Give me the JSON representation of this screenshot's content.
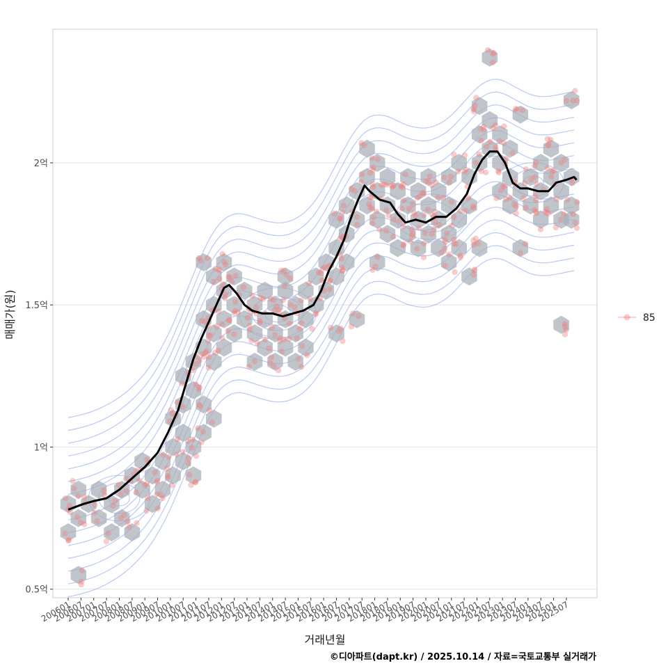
{
  "chart_data": {
    "type": "scatter",
    "title": "",
    "xlabel": "거래년월",
    "ylabel": "매매가(원)",
    "caption": "©디아파트(dapt.kr) / 2025.10.14 / 자료=국토교통부 실거래가",
    "legend": {
      "position": "right",
      "entries": [
        "85"
      ],
      "color": "#f08080"
    },
    "ylim": [
      0.47,
      2.47
    ],
    "y_unit": "억",
    "y_ticks": [
      {
        "value": 0.5,
        "label": "0.5억"
      },
      {
        "value": 1.0,
        "label": "1억"
      },
      {
        "value": 1.5,
        "label": "1.5억"
      },
      {
        "value": 2.0,
        "label": "2억"
      }
    ],
    "x_range_years": [
      2005.4,
      2026.7
    ],
    "x_ticks": [
      "200601",
      "200607",
      "200701",
      "200707",
      "200801",
      "200807",
      "200901",
      "200907",
      "201001",
      "201007",
      "201101",
      "201107",
      "201201",
      "201207",
      "201301",
      "201307",
      "201401",
      "201407",
      "201501",
      "201507",
      "201601",
      "201607",
      "201701",
      "201707",
      "201801",
      "201807",
      "201901",
      "201907",
      "202001",
      "202007",
      "202101",
      "202107",
      "202201",
      "202207",
      "202301",
      "202307",
      "202401",
      "202407",
      "202501",
      "202507"
    ],
    "colors": {
      "point": "#f08080",
      "hex": "#a9b1b9",
      "contour": "#8aa3ee",
      "trend": "#000000",
      "grid": "#e3e3e3",
      "border": "#cccccc"
    },
    "trend_line": [
      [
        2006.0,
        0.78
      ],
      [
        2006.3,
        0.79
      ],
      [
        2006.6,
        0.8
      ],
      [
        2007.0,
        0.81
      ],
      [
        2007.5,
        0.82
      ],
      [
        2008.0,
        0.85
      ],
      [
        2008.5,
        0.89
      ],
      [
        2009.0,
        0.93
      ],
      [
        2009.5,
        0.98
      ],
      [
        2009.9,
        1.05
      ],
      [
        2010.3,
        1.13
      ],
      [
        2010.6,
        1.22
      ],
      [
        2010.9,
        1.31
      ],
      [
        2011.2,
        1.38
      ],
      [
        2011.5,
        1.44
      ],
      [
        2011.8,
        1.5
      ],
      [
        2012.1,
        1.56
      ],
      [
        2012.3,
        1.57
      ],
      [
        2012.6,
        1.54
      ],
      [
        2012.9,
        1.5
      ],
      [
        2013.2,
        1.48
      ],
      [
        2013.6,
        1.47
      ],
      [
        2014.0,
        1.47
      ],
      [
        2014.4,
        1.46
      ],
      [
        2014.8,
        1.47
      ],
      [
        2015.2,
        1.48
      ],
      [
        2015.6,
        1.5
      ],
      [
        2015.9,
        1.55
      ],
      [
        2016.2,
        1.62
      ],
      [
        2016.5,
        1.67
      ],
      [
        2016.8,
        1.73
      ],
      [
        2017.0,
        1.79
      ],
      [
        2017.3,
        1.86
      ],
      [
        2017.6,
        1.92
      ],
      [
        2017.8,
        1.9
      ],
      [
        2018.2,
        1.87
      ],
      [
        2018.6,
        1.86
      ],
      [
        2018.9,
        1.82
      ],
      [
        2019.2,
        1.79
      ],
      [
        2019.6,
        1.8
      ],
      [
        2020.0,
        1.79
      ],
      [
        2020.4,
        1.81
      ],
      [
        2020.8,
        1.81
      ],
      [
        2021.2,
        1.84
      ],
      [
        2021.6,
        1.89
      ],
      [
        2021.9,
        1.96
      ],
      [
        2022.2,
        2.01
      ],
      [
        2022.5,
        2.04
      ],
      [
        2022.8,
        2.04
      ],
      [
        2023.1,
        2.0
      ],
      [
        2023.4,
        1.93
      ],
      [
        2023.7,
        1.91
      ],
      [
        2024.0,
        1.91
      ],
      [
        2024.4,
        1.9
      ],
      [
        2024.8,
        1.9
      ],
      [
        2025.1,
        1.93
      ],
      [
        2025.5,
        1.94
      ],
      [
        2025.8,
        1.95
      ],
      [
        2025.9,
        1.94
      ]
    ],
    "hex_cells": [
      [
        2006.0,
        0.7
      ],
      [
        2006.0,
        0.8
      ],
      [
        2006.4,
        0.85
      ],
      [
        2006.4,
        0.75
      ],
      [
        2006.8,
        0.8
      ],
      [
        2007.2,
        0.75
      ],
      [
        2007.2,
        0.85
      ],
      [
        2007.7,
        0.8
      ],
      [
        2007.7,
        0.7
      ],
      [
        2008.1,
        0.75
      ],
      [
        2008.1,
        0.85
      ],
      [
        2008.5,
        0.7
      ],
      [
        2008.5,
        0.9
      ],
      [
        2008.9,
        0.85
      ],
      [
        2008.9,
        0.95
      ],
      [
        2009.3,
        0.8
      ],
      [
        2009.3,
        0.9
      ],
      [
        2009.7,
        0.95
      ],
      [
        2009.7,
        0.85
      ],
      [
        2010.1,
        1.0
      ],
      [
        2010.1,
        0.9
      ],
      [
        2010.1,
        1.1
      ],
      [
        2010.5,
        1.05
      ],
      [
        2010.5,
        1.15
      ],
      [
        2010.5,
        1.25
      ],
      [
        2010.5,
        0.95
      ],
      [
        2010.9,
        1.2
      ],
      [
        2010.9,
        1.3
      ],
      [
        2010.9,
        1.0
      ],
      [
        2010.9,
        0.9
      ],
      [
        2011.3,
        1.35
      ],
      [
        2011.3,
        1.45
      ],
      [
        2011.3,
        1.15
      ],
      [
        2011.3,
        1.05
      ],
      [
        2011.7,
        1.4
      ],
      [
        2011.7,
        1.5
      ],
      [
        2011.7,
        1.6
      ],
      [
        2011.7,
        1.3
      ],
      [
        2011.7,
        1.1
      ],
      [
        2011.3,
        1.65
      ],
      [
        2012.1,
        1.55
      ],
      [
        2012.1,
        1.65
      ],
      [
        2012.1,
        1.45
      ],
      [
        2012.1,
        1.35
      ],
      [
        2012.5,
        1.6
      ],
      [
        2012.5,
        1.5
      ],
      [
        2012.5,
        1.4
      ],
      [
        2012.9,
        1.55
      ],
      [
        2012.9,
        1.45
      ],
      [
        2013.3,
        1.5
      ],
      [
        2013.3,
        1.4
      ],
      [
        2013.3,
        1.3
      ],
      [
        2013.7,
        1.55
      ],
      [
        2013.7,
        1.45
      ],
      [
        2013.7,
        1.35
      ],
      [
        2014.1,
        1.5
      ],
      [
        2014.1,
        1.4
      ],
      [
        2014.1,
        1.3
      ],
      [
        2014.5,
        1.55
      ],
      [
        2014.5,
        1.45
      ],
      [
        2014.5,
        1.35
      ],
      [
        2014.5,
        1.6
      ],
      [
        2014.9,
        1.5
      ],
      [
        2014.9,
        1.4
      ],
      [
        2014.9,
        1.3
      ],
      [
        2015.3,
        1.55
      ],
      [
        2015.3,
        1.45
      ],
      [
        2015.3,
        1.35
      ],
      [
        2015.7,
        1.5
      ],
      [
        2015.7,
        1.6
      ],
      [
        2016.1,
        1.55
      ],
      [
        2016.1,
        1.65
      ],
      [
        2016.5,
        1.6
      ],
      [
        2016.5,
        1.7
      ],
      [
        2016.5,
        1.8
      ],
      [
        2016.5,
        1.4
      ],
      [
        2016.9,
        1.75
      ],
      [
        2016.9,
        1.85
      ],
      [
        2016.9,
        1.65
      ],
      [
        2017.3,
        1.9
      ],
      [
        2017.3,
        1.8
      ],
      [
        2017.3,
        1.45
      ],
      [
        2017.7,
        1.85
      ],
      [
        2017.7,
        1.95
      ],
      [
        2017.7,
        2.05
      ],
      [
        2018.1,
        1.9
      ],
      [
        2018.1,
        2.0
      ],
      [
        2018.1,
        1.8
      ],
      [
        2018.1,
        1.65
      ],
      [
        2018.5,
        1.85
      ],
      [
        2018.5,
        1.75
      ],
      [
        2018.5,
        1.95
      ],
      [
        2018.9,
        1.8
      ],
      [
        2018.9,
        1.9
      ],
      [
        2018.9,
        1.7
      ],
      [
        2019.3,
        1.85
      ],
      [
        2019.3,
        1.95
      ],
      [
        2019.3,
        1.75
      ],
      [
        2019.7,
        1.8
      ],
      [
        2019.7,
        1.9
      ],
      [
        2019.7,
        1.7
      ],
      [
        2020.1,
        1.85
      ],
      [
        2020.1,
        1.95
      ],
      [
        2020.1,
        1.75
      ],
      [
        2020.5,
        1.8
      ],
      [
        2020.5,
        1.9
      ],
      [
        2020.5,
        1.7
      ],
      [
        2020.9,
        1.85
      ],
      [
        2020.9,
        1.75
      ],
      [
        2020.9,
        1.65
      ],
      [
        2020.9,
        1.95
      ],
      [
        2021.3,
        1.8
      ],
      [
        2021.3,
        1.7
      ],
      [
        2021.3,
        2.0
      ],
      [
        2021.7,
        1.85
      ],
      [
        2021.7,
        1.95
      ],
      [
        2021.7,
        1.6
      ],
      [
        2022.1,
        2.0
      ],
      [
        2022.1,
        2.1
      ],
      [
        2022.1,
        2.2
      ],
      [
        2022.1,
        1.7
      ],
      [
        2022.5,
        2.05
      ],
      [
        2022.5,
        2.15
      ],
      [
        2022.5,
        2.37
      ],
      [
        2022.9,
        1.9
      ],
      [
        2022.9,
        2.0
      ],
      [
        2022.9,
        2.1
      ],
      [
        2023.3,
        1.95
      ],
      [
        2023.3,
        2.05
      ],
      [
        2023.3,
        1.85
      ],
      [
        2023.7,
        1.9
      ],
      [
        2023.7,
        1.7
      ],
      [
        2023.7,
        2.17
      ],
      [
        2024.1,
        1.85
      ],
      [
        2024.1,
        1.95
      ],
      [
        2024.5,
        1.8
      ],
      [
        2024.5,
        1.9
      ],
      [
        2024.5,
        2.0
      ],
      [
        2024.9,
        1.85
      ],
      [
        2024.9,
        1.95
      ],
      [
        2024.9,
        2.05
      ],
      [
        2025.3,
        1.8
      ],
      [
        2025.3,
        1.9
      ],
      [
        2025.3,
        2.0
      ],
      [
        2025.7,
        1.85
      ],
      [
        2025.7,
        1.95
      ],
      [
        2025.7,
        2.22
      ],
      [
        2025.3,
        1.43
      ],
      [
        2025.7,
        1.8
      ],
      [
        2006.4,
        0.55
      ]
    ]
  }
}
